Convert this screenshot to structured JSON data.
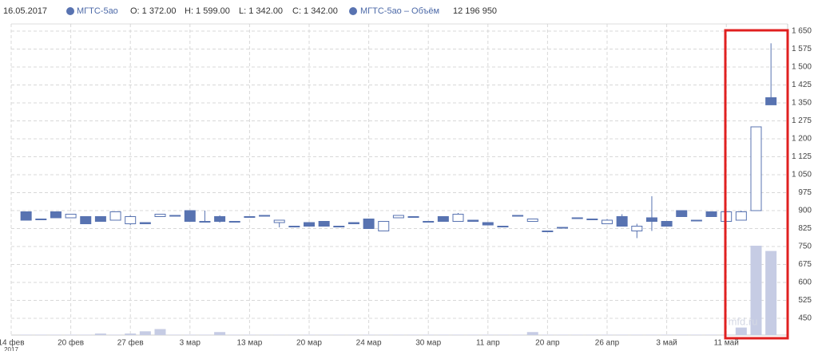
{
  "header": {
    "date": "16.05.2017",
    "open": "O: 1 372.00",
    "high": "H: 1 599.00",
    "low": "L: 1 342.00",
    "close": "C: 1 342.00",
    "volume": "12 196 950"
  },
  "watermark": "mfd.ru",
  "chart_data": {
    "type": "candlestick",
    "categories": [
      "14 фев",
      null,
      null,
      null,
      "20 фев",
      null,
      null,
      null,
      "27 фев",
      null,
      null,
      null,
      "3 мар",
      null,
      null,
      null,
      "13 мар",
      null,
      null,
      null,
      "20 мар",
      null,
      null,
      null,
      "24 мар",
      null,
      null,
      null,
      "30 мар",
      null,
      null,
      null,
      "11 апр",
      null,
      null,
      null,
      "20 апр",
      null,
      null,
      null,
      "26 апр",
      null,
      null,
      null,
      "3 май",
      null,
      null,
      null,
      "11 май",
      null,
      null,
      null
    ],
    "x_year": "2017",
    "series": [
      {
        "name": "МГТС-5ао",
        "color": "#5873b1",
        "open": [
          null,
          895,
          865,
          895,
          870,
          875,
          875,
          860,
          845,
          850,
          875,
          880,
          900,
          855,
          875,
          855,
          875,
          880,
          850,
          835,
          850,
          855,
          835,
          850,
          865,
          815,
          870,
          875,
          855,
          875,
          855,
          860,
          850,
          835,
          880,
          855,
          815,
          830,
          870,
          865,
          845,
          875,
          815,
          870,
          855,
          900,
          860,
          895,
          855,
          860,
          900,
          1372
        ],
        "high": [
          null,
          895,
          865,
          895,
          885,
          875,
          875,
          895,
          880,
          850,
          885,
          880,
          900,
          900,
          880,
          855,
          875,
          880,
          860,
          835,
          850,
          855,
          835,
          850,
          865,
          855,
          880,
          875,
          855,
          875,
          890,
          860,
          850,
          835,
          880,
          865,
          815,
          830,
          870,
          865,
          865,
          885,
          845,
          960,
          855,
          900,
          860,
          895,
          895,
          900,
          1250,
          1599
        ],
        "low": [
          null,
          860,
          865,
          870,
          870,
          845,
          855,
          860,
          840,
          845,
          875,
          880,
          855,
          855,
          850,
          855,
          875,
          880,
          830,
          835,
          835,
          835,
          835,
          845,
          825,
          815,
          870,
          875,
          855,
          855,
          855,
          855,
          840,
          835,
          880,
          855,
          815,
          830,
          870,
          865,
          845,
          835,
          785,
          815,
          835,
          875,
          860,
          875,
          855,
          860,
          900,
          1342
        ],
        "close": [
          null,
          860,
          865,
          870,
          885,
          845,
          855,
          895,
          875,
          845,
          885,
          880,
          855,
          855,
          855,
          855,
          875,
          880,
          860,
          835,
          835,
          835,
          835,
          845,
          825,
          855,
          880,
          875,
          855,
          855,
          885,
          855,
          840,
          835,
          880,
          865,
          815,
          830,
          870,
          865,
          860,
          835,
          835,
          855,
          835,
          875,
          860,
          875,
          895,
          895,
          1250,
          1342
        ]
      },
      {
        "name": "МГТС-5ао – Объём",
        "color": "#c6cce4",
        "kind": "volume",
        "values": [
          null,
          60000,
          60000,
          60000,
          60000,
          60000,
          220000,
          60000,
          220000,
          545000,
          870000,
          60000,
          60000,
          60000,
          435000,
          60000,
          60000,
          60000,
          60000,
          60000,
          60000,
          60000,
          60000,
          60000,
          60000,
          60000,
          60000,
          60000,
          60000,
          60000,
          60000,
          60000,
          60000,
          60000,
          60000,
          435000,
          60000,
          60000,
          60000,
          60000,
          60000,
          60000,
          60000,
          60000,
          60000,
          60000,
          60000,
          60000,
          60000,
          1090000,
          12960000,
          12196950
        ]
      }
    ],
    "ylim": [
      380,
      1680
    ],
    "yticks": [
      {
        "value": 1650,
        "label": "1 650"
      },
      {
        "value": 1575,
        "label": "1 575"
      },
      {
        "value": 1500,
        "label": "1 500"
      },
      {
        "value": 1425,
        "label": "1 425"
      },
      {
        "value": 1350,
        "label": "1 350"
      },
      {
        "value": 1275,
        "label": "1 275"
      },
      {
        "value": 1200,
        "label": "1 200"
      },
      {
        "value": 1125,
        "label": "1 125"
      },
      {
        "value": 1050,
        "label": "1 050"
      },
      975,
      900,
      825,
      750,
      675,
      600,
      525,
      450
    ],
    "grid": true
  }
}
